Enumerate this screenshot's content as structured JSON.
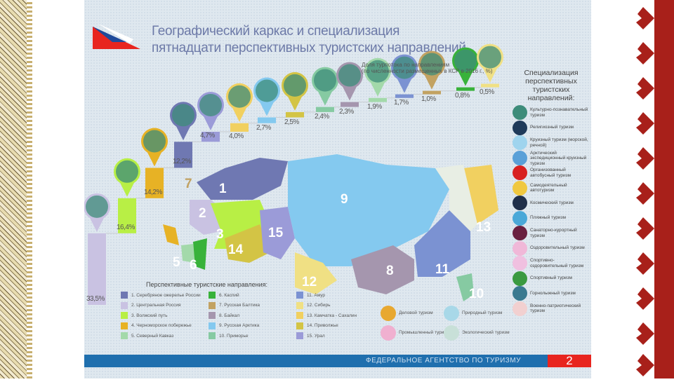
{
  "header": {
    "title_line1": "Географический каркас и специализация",
    "title_line2": "пятнадцати перспективных туристских направлений"
  },
  "chart_data": {
    "type": "bar",
    "title": "Доля турпотока по направлениям",
    "subtitle": "(по численности размещенных в КСР в 2016 г., %)",
    "categories": [
      "2",
      "3",
      "4",
      "1",
      "15",
      "13",
      "9",
      "14",
      "10",
      "8",
      "5",
      "11",
      "7",
      "6",
      "12"
    ],
    "values": [
      33.5,
      16.4,
      14.2,
      12.2,
      4.7,
      4.0,
      2.7,
      2.5,
      2.4,
      2.3,
      1.9,
      1.7,
      1.0,
      0.8,
      0.5
    ],
    "value_labels": [
      "33,5%",
      "16,4%",
      "14,2%",
      "12,2%",
      "4,7%",
      "4,0%",
      "2,7%",
      "2,5%",
      "2,4%",
      "2,3%",
      "1,9%",
      "1,7%",
      "1,0%",
      "0,8%",
      "0,5%"
    ],
    "colors": [
      "#c9c2e2",
      "#b8ef45",
      "#e7b225",
      "#6f78b2",
      "#9b9bd8",
      "#f1d060",
      "#84c9ef",
      "#d3c445",
      "#86caa2",
      "#a596ae",
      "#a3d9aa",
      "#7b92d2",
      "#c2a262",
      "#38b23a",
      "#f0e084"
    ]
  },
  "specialization": {
    "title": "Специализация перспективных туристских направлений:",
    "items": [
      {
        "label": "Культурно-познавательный туризм",
        "color": "#3d8c7a"
      },
      {
        "label": "Религиозный туризм",
        "color": "#1f3a5a"
      },
      {
        "label": "Круизный туризм (морской, речной)",
        "color": "#9fd4ee"
      },
      {
        "label": "Арктический экспедиционный круизный туризм",
        "color": "#5aa0d8"
      },
      {
        "label": "Организованный автобусный туризм",
        "color": "#d82020"
      },
      {
        "label": "Самодеятельный автотуризм",
        "color": "#f0c840"
      },
      {
        "label": "Космический туризм",
        "color": "#1f2f4a"
      },
      {
        "label": "Пляжный туризм",
        "color": "#4aa8d8"
      },
      {
        "label": "Санаторно-курортный туризм",
        "color": "#6a2040"
      },
      {
        "label": "Оздоровительный туризм",
        "color": "#f0b8d8"
      },
      {
        "label": "Спортивно-оздоровительный туризм",
        "color": "#f0c0e0"
      },
      {
        "label": "Спортивный туризм",
        "color": "#3a9a40"
      },
      {
        "label": "Горнолыжный туризм",
        "color": "#3a7a90"
      },
      {
        "label": "Военно-патриотический туризм",
        "color": "#f2d0d0"
      }
    ]
  },
  "directions": {
    "title": "Перспективные туристские направления:",
    "items": [
      {
        "label": "1. Серебряное ожерелье России",
        "color": "#6f78b2"
      },
      {
        "label": "2. Центральная Россия",
        "color": "#c9c2e2"
      },
      {
        "label": "3. Волжский путь",
        "color": "#b8ef45"
      },
      {
        "label": "4. Черноморское побережье",
        "color": "#e7b225"
      },
      {
        "label": "5. Северный Кавказ",
        "color": "#a3d9aa"
      },
      {
        "label": "6. Каспий",
        "color": "#38b23a"
      },
      {
        "label": "7. Русская Балтика",
        "color": "#c2a262"
      },
      {
        "label": "8. Байкал",
        "color": "#a596ae"
      },
      {
        "label": "9. Русская Арктика",
        "color": "#84c9ef"
      },
      {
        "label": "10. Приморье",
        "color": "#86caa2"
      },
      {
        "label": "11. Амур",
        "color": "#7b92d2"
      },
      {
        "label": "12. Сибирь",
        "color": "#f0e084"
      },
      {
        "label": "13. Камчатка - Сахалин",
        "color": "#f1d060"
      },
      {
        "label": "14. Приволжье",
        "color": "#d3c445"
      },
      {
        "label": "15. Урал",
        "color": "#9b9bd8"
      }
    ]
  },
  "extra_types": [
    {
      "label": "Деловой туризм",
      "color": "#e8a830"
    },
    {
      "label": "Промышленный туризм",
      "color": "#f0b0d0"
    },
    {
      "label": "Природный туризм",
      "color": "#a8d8e8"
    },
    {
      "label": "Экологический туризм",
      "color": "#c8e0d8"
    }
  ],
  "footer": {
    "agency": "ФЕДЕРАЛЬНОЕ АГЕНТСТВО ПО ТУРИЗМУ",
    "page": "2"
  }
}
